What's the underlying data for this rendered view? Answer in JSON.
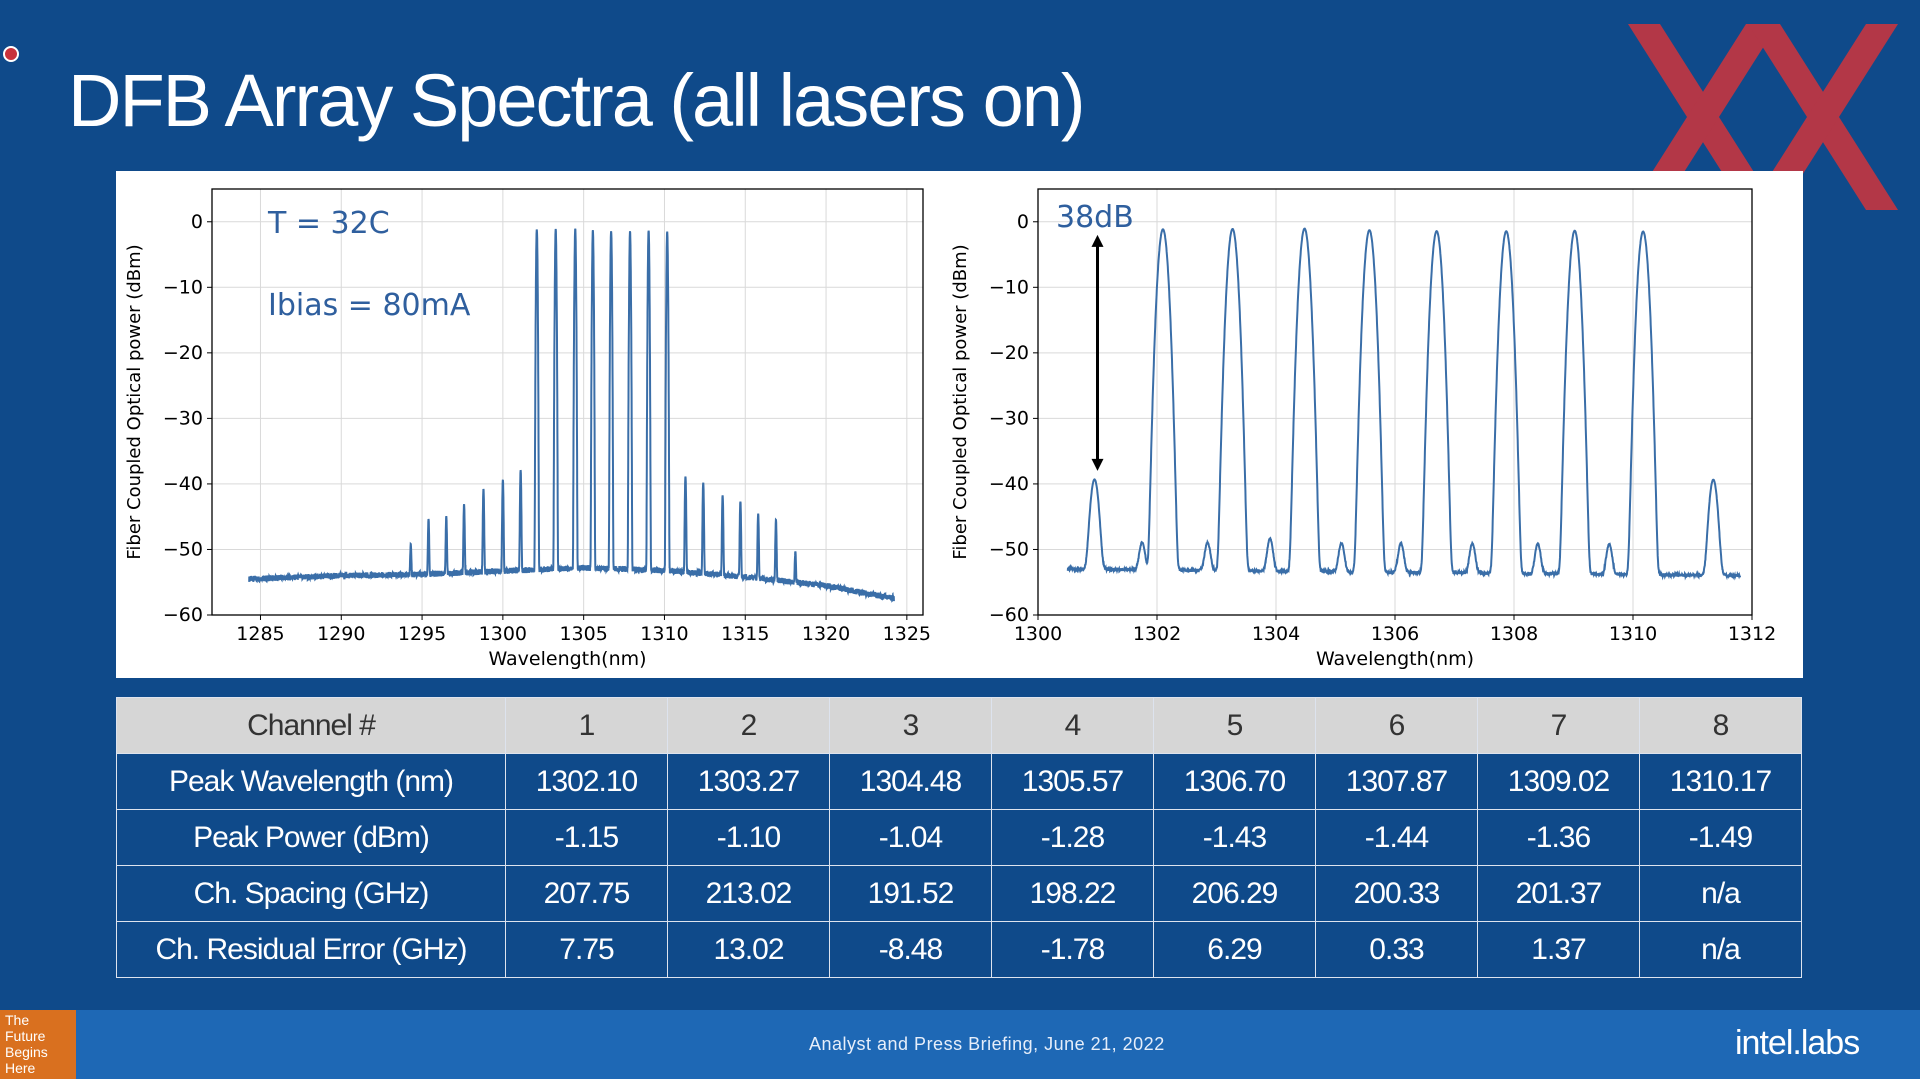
{
  "slide": {
    "title": "DFB Array Spectra (all lasers on)",
    "footer_text": "Analyst and Press Briefing,  June 21, 2022",
    "future_badge": [
      "The",
      "Future",
      "Begins",
      "Here"
    ],
    "brand": "intel.labs",
    "colors": {
      "background": "#0f4a8a",
      "footer": "#1e68b5",
      "badge": "#d9701f",
      "trace": "#3a6ea8",
      "watermark": "#d0343c"
    }
  },
  "chart_data": [
    {
      "type": "line",
      "xlabel": "Wavelength(nm)",
      "ylabel": "Fiber Coupled Optical power (dBm)",
      "xlim": [
        1282,
        1326
      ],
      "ylim": [
        -60,
        5
      ],
      "xticks": [
        1285,
        1290,
        1295,
        1300,
        1305,
        1310,
        1315,
        1320,
        1325
      ],
      "yticks": [
        0,
        -10,
        -20,
        -30,
        -40,
        -50,
        -60
      ],
      "grid": true,
      "annotations": [
        "T = 32C",
        "Ibias = 80mA"
      ],
      "baseline": {
        "x": [
          1284.3,
          1290,
          1295,
          1300,
          1305,
          1310,
          1315,
          1320,
          1324.2
        ],
        "y": [
          -54.5,
          -54,
          -53.8,
          -53.3,
          -52.8,
          -53.2,
          -54.2,
          -55.5,
          -57.5
        ]
      },
      "peaks": {
        "x": [
          1294.3,
          1295.4,
          1296.5,
          1297.6,
          1298.8,
          1300.0,
          1301.1,
          1302.1,
          1303.27,
          1304.48,
          1305.57,
          1306.7,
          1307.87,
          1309.02,
          1310.17,
          1311.3,
          1312.4,
          1313.6,
          1314.7,
          1315.8,
          1316.9,
          1318.1
        ],
        "y": [
          -51,
          -46,
          -45.5,
          -43.5,
          -41,
          -39.5,
          -38,
          -1.15,
          -1.1,
          -1.04,
          -1.28,
          -1.43,
          -1.44,
          -1.36,
          -1.49,
          -39,
          -40,
          -42,
          -43,
          -45,
          -46,
          -52
        ]
      }
    },
    {
      "type": "line",
      "xlabel": "Wavelength(nm)",
      "ylabel": "Fiber Coupled Optical power (dBm)",
      "xlim": [
        1300,
        1312
      ],
      "ylim": [
        -60,
        5
      ],
      "xticks": [
        1300,
        1302,
        1304,
        1306,
        1308,
        1310,
        1312
      ],
      "yticks": [
        0,
        -10,
        -20,
        -30,
        -40,
        -50,
        -60
      ],
      "grid": true,
      "annotations": [
        "38dB"
      ],
      "arrow": {
        "x": 1301,
        "from": -2,
        "to": -38
      },
      "baseline": {
        "x": [
          1300.5,
          1311.8
        ],
        "y": [
          -53,
          -54
        ]
      },
      "peaks": {
        "x": [
          1300.95,
          1302.1,
          1303.27,
          1304.48,
          1305.57,
          1306.7,
          1307.87,
          1309.02,
          1310.17,
          1311.35
        ],
        "y": [
          -39.5,
          -1.15,
          -1.1,
          -1.04,
          -1.28,
          -1.43,
          -1.44,
          -1.36,
          -1.49,
          -39.5
        ]
      },
      "side_peaks": {
        "x": [
          1301.75,
          1302.85,
          1303.9,
          1305.1,
          1306.1,
          1307.3,
          1308.4,
          1309.6
        ],
        "y": [
          -51,
          -51,
          -50,
          -51,
          -51,
          -51,
          -51,
          -51
        ]
      }
    }
  ],
  "table": {
    "header": [
      "Channel #",
      "1",
      "2",
      "3",
      "4",
      "5",
      "6",
      "7",
      "8"
    ],
    "rows": [
      [
        "Peak Wavelength (nm)",
        "1302.10",
        "1303.27",
        "1304.48",
        "1305.57",
        "1306.70",
        "1307.87",
        "1309.02",
        "1310.17"
      ],
      [
        "Peak Power (dBm)",
        "-1.15",
        "-1.10",
        "-1.04",
        "-1.28",
        "-1.43",
        "-1.44",
        "-1.36",
        "-1.49"
      ],
      [
        "Ch. Spacing (GHz)",
        "207.75",
        "213.02",
        "191.52",
        "198.22",
        "206.29",
        "200.33",
        "201.37",
        "n/a"
      ],
      [
        "Ch. Residual Error (GHz)",
        "7.75",
        "13.02",
        "-8.48",
        "-1.78",
        "6.29",
        "0.33",
        "1.37",
        "n/a"
      ]
    ]
  }
}
